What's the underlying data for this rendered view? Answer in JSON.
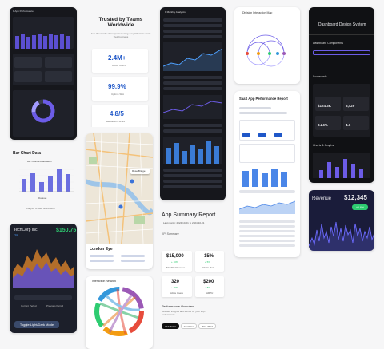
{
  "colors": {
    "accent": "#6c5ce7",
    "dark_bg": "#16171c",
    "panel": "#23252d",
    "blue": "#1f57c8",
    "green": "#2ecc71",
    "orange": "#f39c12"
  },
  "trust": {
    "title": "Trusted by Teams Worldwide",
    "subtitle": "Join thousands of companies using our platform to scale their business",
    "stats": [
      {
        "value": "2.4M+",
        "label": "Active Users"
      },
      {
        "value": "99.9%",
        "label": "Uptime SLA"
      },
      {
        "value": "4.8/5",
        "label": "Satisfaction Score"
      }
    ]
  },
  "bar_chart": {
    "title": "Bar Chart Data",
    "inner_title": "Bar Chart Visualization",
    "footer": "Analysis of data distribution",
    "legend": "Dataset"
  },
  "tech": {
    "name": "TechCorp Inc.",
    "ticker": "TCH",
    "price": "$150.75",
    "legend_current": "Current Period",
    "legend_previous": "Previous Period",
    "toggle": "Toggle Light/Dark Mode"
  },
  "map": {
    "place": "London Eye",
    "popup": "Rose Bridge"
  },
  "interaction": {
    "title": "Interaction Network"
  },
  "division_map": {
    "title": "Division Interaction Map"
  },
  "saas": {
    "title": "SaaS App Performance Report"
  },
  "summary": {
    "title": "App Summary Report",
    "date": "Last month: 2024-10-01 to 2024-10-31",
    "section": "KPI Summary",
    "kpis": [
      {
        "value": "$15,000",
        "badge": "+ 10%",
        "label": "Monthly Revenue"
      },
      {
        "value": "15%",
        "badge": "+ 5%",
        "label": "Churn Rate"
      },
      {
        "value": "320",
        "badge": "+ 15%",
        "label": "Active Users"
      },
      {
        "value": "$200",
        "badge": "+ 8%",
        "label": "ARPU"
      }
    ],
    "perf_title": "Performance Overview",
    "perf_sub": "Detailed insights and trends for your app's performance",
    "tabs": [
      "Web Traffic",
      "Goal Flow",
      "Plan / Paid"
    ]
  },
  "design": {
    "title": "Dashboard Design System",
    "components": "Dashboard Components",
    "scorecards": "Scorecards",
    "charts": "Charts & Graphs",
    "scores": [
      "$124.3K",
      "6,429",
      "3.24%",
      "4.6"
    ]
  },
  "revenue": {
    "label": "Revenue",
    "value": "$12,345",
    "badge": "+6.6%"
  }
}
